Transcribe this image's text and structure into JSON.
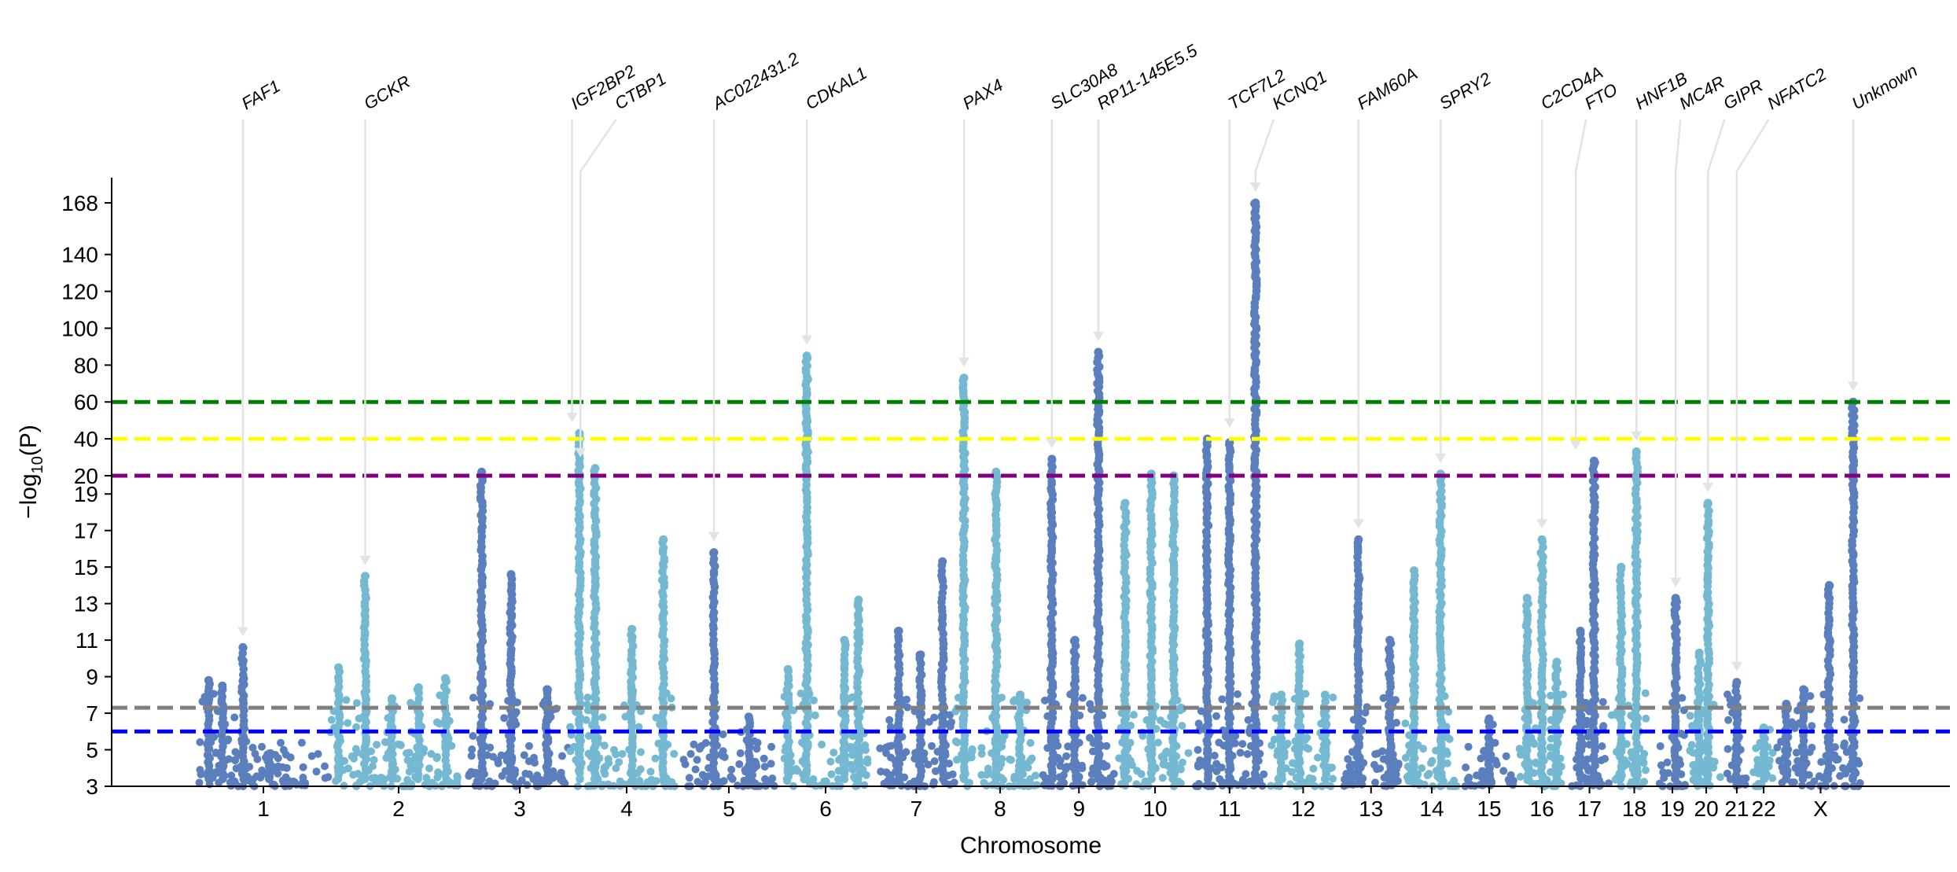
{
  "chart_data": {
    "type": "scatter",
    "subtype": "manhattan",
    "title": "",
    "xlabel": "Chromosome",
    "ylabel": "−log10(P)",
    "ylabel_main": "−log",
    "ylabel_sub": "10",
    "ylabel_tail": "(P)",
    "grid": false,
    "y_scale": "broken: linear 3–20 (lower), linear 20–168 (upper)",
    "ylim": [
      3,
      168
    ],
    "yticks": [
      "3",
      "5",
      "7",
      "9",
      "11",
      "13",
      "15",
      "17",
      "19",
      "20",
      "40",
      "60",
      "80",
      "100",
      "120",
      "140",
      "168"
    ],
    "colors": {
      "odd": "#5b7fbd",
      "even": "#74b9d1"
    },
    "chromosomes": [
      {
        "label": "1",
        "size": 249,
        "peaks": [
          [
            0.1,
            8.8
          ],
          [
            0.2,
            8.5
          ],
          [
            0.35,
            10.6
          ],
          [
            0.55,
            4.8
          ]
        ]
      },
      {
        "label": "2",
        "size": 243,
        "peaks": [
          [
            0.05,
            9.5
          ],
          [
            0.25,
            14.5
          ],
          [
            0.45,
            7.8
          ],
          [
            0.65,
            8.4
          ],
          [
            0.85,
            8.9
          ]
        ]
      },
      {
        "label": "3",
        "size": 198,
        "peaks": [
          [
            0.15,
            22
          ],
          [
            0.42,
            14.6
          ],
          [
            0.75,
            8.3
          ]
        ]
      },
      {
        "label": "4",
        "size": 191,
        "peaks": [
          [
            0.05,
            43
          ],
          [
            0.2,
            24
          ],
          [
            0.55,
            11.6
          ],
          [
            0.85,
            16.5
          ]
        ]
      },
      {
        "label": "5",
        "size": 181,
        "peaks": [
          [
            0.35,
            15.8
          ],
          [
            0.7,
            6.8
          ]
        ]
      },
      {
        "label": "6",
        "size": 171,
        "peaks": [
          [
            0.1,
            9.4
          ],
          [
            0.3,
            85
          ],
          [
            0.7,
            11
          ],
          [
            0.85,
            13.2
          ]
        ]
      },
      {
        "label": "7",
        "size": 159,
        "peaks": [
          [
            0.3,
            11.5
          ],
          [
            0.55,
            10.2
          ],
          [
            0.8,
            15.3
          ]
        ]
      },
      {
        "label": "8",
        "size": 146,
        "peaks": [
          [
            0.05,
            73
          ],
          [
            0.45,
            22
          ],
          [
            0.75,
            8
          ]
        ]
      },
      {
        "label": "9",
        "size": 141,
        "peaks": [
          [
            0.15,
            29
          ],
          [
            0.45,
            11
          ],
          [
            0.75,
            87
          ]
        ]
      },
      {
        "label": "10",
        "size": 136,
        "peaks": [
          [
            0.1,
            18.5
          ],
          [
            0.45,
            21
          ],
          [
            0.75,
            20
          ]
        ]
      },
      {
        "label": "11",
        "size": 135,
        "peaks": [
          [
            0.2,
            40
          ],
          [
            0.5,
            38
          ],
          [
            0.85,
            168
          ]
        ]
      },
      {
        "label": "12",
        "size": 133,
        "peaks": [
          [
            0.2,
            8
          ],
          [
            0.45,
            10.8
          ],
          [
            0.8,
            8
          ]
        ]
      },
      {
        "label": "13",
        "size": 114,
        "peaks": [
          [
            0.3,
            16.5
          ],
          [
            0.8,
            11
          ]
        ]
      },
      {
        "label": "14",
        "size": 107,
        "peaks": [
          [
            0.2,
            14.8
          ],
          [
            0.65,
            21
          ]
        ]
      },
      {
        "label": "15",
        "size": 102,
        "peaks": [
          [
            0.5,
            6.7
          ]
        ]
      },
      {
        "label": "16",
        "size": 90,
        "peaks": [
          [
            0.2,
            13.3
          ],
          [
            0.5,
            16.5
          ],
          [
            0.8,
            9.8
          ]
        ]
      },
      {
        "label": "17",
        "size": 83,
        "peaks": [
          [
            0.3,
            11.5
          ],
          [
            0.6,
            28
          ]
        ]
      },
      {
        "label": "18",
        "size": 80,
        "peaks": [
          [
            0.2,
            15
          ],
          [
            0.55,
            33
          ]
        ]
      },
      {
        "label": "19",
        "size": 59,
        "peaks": [
          [
            0.6,
            13.3
          ]
        ]
      },
      {
        "label": "20",
        "size": 64,
        "peaks": [
          [
            0.3,
            10.3
          ],
          [
            0.55,
            18.5
          ]
        ]
      },
      {
        "label": "21",
        "size": 47,
        "peaks": [
          [
            0.5,
            8.7
          ]
        ]
      },
      {
        "label": "22",
        "size": 51,
        "peaks": [
          [
            0.5,
            6.2
          ]
        ]
      },
      {
        "label": "X",
        "size": 156,
        "peaks": [
          [
            0.1,
            7.5
          ],
          [
            0.3,
            8.3
          ],
          [
            0.6,
            14
          ],
          [
            0.88,
            60
          ]
        ]
      }
    ],
    "thresholds": [
      {
        "value": 60,
        "color": "#008000"
      },
      {
        "value": 40,
        "color": "#ffff00"
      },
      {
        "value": 20,
        "color": "#800080"
      },
      {
        "value": 7.3,
        "color": "#808080"
      },
      {
        "value": 6,
        "color": "#0000ff"
      }
    ],
    "annotations": [
      {
        "gene": "FAF1",
        "chr": "1",
        "pos": 0.35,
        "y": 10.6
      },
      {
        "gene": "GCKR",
        "chr": "2",
        "pos": 0.25,
        "y": 14.5
      },
      {
        "gene": "IGF2BP2",
        "chr": "3",
        "pos": 0.98,
        "y": 43
      },
      {
        "gene": "CTBP1",
        "chr": "4",
        "pos": 0.06,
        "y": 24
      },
      {
        "gene": "AC022431.2",
        "chr": "5",
        "pos": 0.35,
        "y": 15.8
      },
      {
        "gene": "CDKAL1",
        "chr": "6",
        "pos": 0.3,
        "y": 85
      },
      {
        "gene": "PAX4",
        "chr": "8",
        "pos": 0.05,
        "y": 73
      },
      {
        "gene": "SLC30A8",
        "chr": "9",
        "pos": 0.15,
        "y": 29
      },
      {
        "gene": "RP11-145E5.5",
        "chr": "9",
        "pos": 0.75,
        "y": 87
      },
      {
        "gene": "TCF7L2",
        "chr": "11",
        "pos": 0.5,
        "y": 40
      },
      {
        "gene": "KCNQ1",
        "chr": "11",
        "pos": 0.85,
        "y": 168
      },
      {
        "gene": "FAM60A",
        "chr": "13",
        "pos": 0.3,
        "y": 16.5
      },
      {
        "gene": "SPRY2",
        "chr": "14",
        "pos": 0.65,
        "y": 21
      },
      {
        "gene": "C2CD4A",
        "chr": "16",
        "pos": 0.5,
        "y": 16.5
      },
      {
        "gene": "FTO",
        "chr": "17",
        "pos": 0.2,
        "y": 28
      },
      {
        "gene": "HNF1B",
        "chr": "18",
        "pos": 0.55,
        "y": 33
      },
      {
        "gene": "MC4R",
        "chr": "19",
        "pos": 0.6,
        "y": 13.3
      },
      {
        "gene": "GIPR",
        "chr": "20",
        "pos": 0.55,
        "y": 18.5
      },
      {
        "gene": "NFATC2",
        "chr": "21",
        "pos": 0.5,
        "y": 8.7
      },
      {
        "gene": "Unknown",
        "chr": "X",
        "pos": 0.88,
        "y": 60
      }
    ]
  }
}
